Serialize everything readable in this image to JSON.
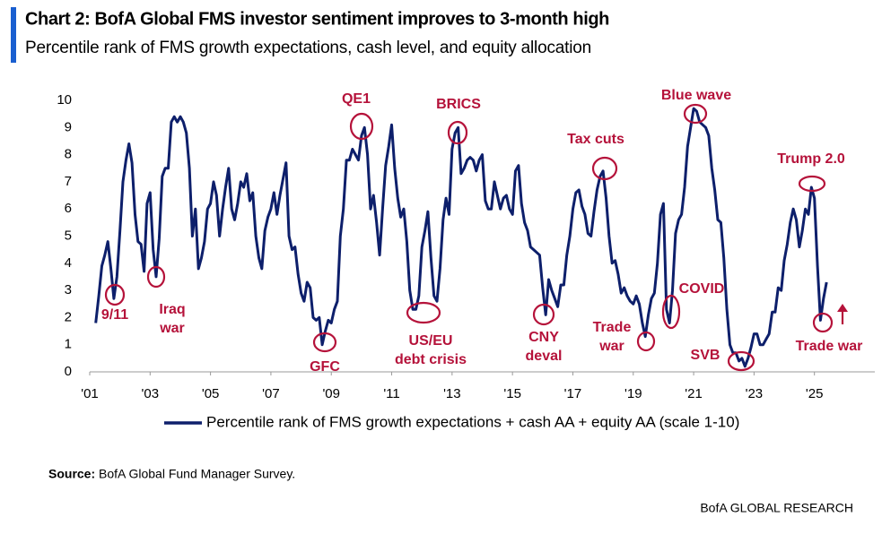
{
  "chart_data": {
    "type": "line",
    "title": "Chart 2: BofA Global FMS investor sentiment improves to 3-month high",
    "subtitle": "Percentile rank of FMS growth expectations, cash level, and equity allocation",
    "source_label": "Source:",
    "source": "BofA Global Fund Manager Survey.",
    "footer": "BofA GLOBAL RESEARCH",
    "xlim": [
      2001,
      2027
    ],
    "xticks": [
      {
        "value": 2001,
        "label": "'01"
      },
      {
        "value": 2003,
        "label": "'03"
      },
      {
        "value": 2005,
        "label": "'05"
      },
      {
        "value": 2007,
        "label": "'07"
      },
      {
        "value": 2009,
        "label": "'09"
      },
      {
        "value": 2011,
        "label": "'11"
      },
      {
        "value": 2013,
        "label": "'13"
      },
      {
        "value": 2015,
        "label": "'15"
      },
      {
        "value": 2017,
        "label": "'17"
      },
      {
        "value": 2019,
        "label": "'19"
      },
      {
        "value": 2021,
        "label": "'21"
      },
      {
        "value": 2023,
        "label": "'23"
      },
      {
        "value": 2025,
        "label": "'25"
      }
    ],
    "ylim": [
      0,
      10
    ],
    "yticks": [
      0,
      1,
      2,
      3,
      4,
      5,
      6,
      7,
      8,
      9,
      10
    ],
    "grid": false,
    "legend": "bottom",
    "annotations": [
      [
        "9/11"
      ],
      [
        "Iraq",
        "war"
      ],
      [
        "GFC"
      ],
      [
        "QE1"
      ],
      [
        "US/EU",
        "debt crisis"
      ],
      [
        "BRICS"
      ],
      [
        "CNY",
        "deval"
      ],
      [
        "Tax cuts"
      ],
      [
        "Trade",
        "war"
      ],
      [
        "COVID"
      ],
      [
        "Blue wave"
      ],
      [
        "SVB"
      ],
      [
        "Trump 2.0"
      ],
      [
        "Trade war"
      ]
    ],
    "annotation_color": "#b5123a",
    "x": [
      2001.2,
      2001.3,
      2001.4,
      2001.5,
      2001.6,
      2001.7,
      2001.8,
      2001.9,
      2002.0,
      2002.1,
      2002.2,
      2002.3,
      2002.4,
      2002.5,
      2002.6,
      2002.7,
      2002.8,
      2002.9,
      2003.0,
      2003.1,
      2003.2,
      2003.3,
      2003.4,
      2003.5,
      2003.6,
      2003.7,
      2003.8,
      2003.9,
      2004.0,
      2004.1,
      2004.2,
      2004.3,
      2004.4,
      2004.5,
      2004.6,
      2004.7,
      2004.8,
      2004.9,
      2005.0,
      2005.1,
      2005.2,
      2005.3,
      2005.4,
      2005.5,
      2005.6,
      2005.7,
      2005.8,
      2005.9,
      2006.0,
      2006.1,
      2006.2,
      2006.3,
      2006.4,
      2006.5,
      2006.6,
      2006.7,
      2006.8,
      2006.9,
      2007.0,
      2007.1,
      2007.2,
      2007.3,
      2007.4,
      2007.5,
      2007.6,
      2007.7,
      2007.8,
      2007.9,
      2008.0,
      2008.1,
      2008.2,
      2008.3,
      2008.4,
      2008.5,
      2008.6,
      2008.7,
      2008.8,
      2008.9,
      2009.0,
      2009.1,
      2009.2,
      2009.3,
      2009.4,
      2009.5,
      2009.6,
      2009.7,
      2009.8,
      2009.9,
      2010.0,
      2010.1,
      2010.2,
      2010.3,
      2010.4,
      2010.5,
      2010.6,
      2010.7,
      2010.8,
      2010.9,
      2011.0,
      2011.1,
      2011.2,
      2011.3,
      2011.4,
      2011.5,
      2011.6,
      2011.7,
      2011.8,
      2011.9,
      2012.0,
      2012.1,
      2012.2,
      2012.3,
      2012.4,
      2012.5,
      2012.6,
      2012.7,
      2012.8,
      2012.9,
      2013.0,
      2013.1,
      2013.2,
      2013.3,
      2013.4,
      2013.5,
      2013.6,
      2013.7,
      2013.8,
      2013.9,
      2014.0,
      2014.1,
      2014.2,
      2014.3,
      2014.4,
      2014.5,
      2014.6,
      2014.7,
      2014.8,
      2014.9,
      2015.0,
      2015.1,
      2015.2,
      2015.3,
      2015.4,
      2015.5,
      2015.6,
      2015.7,
      2015.8,
      2015.9,
      2016.0,
      2016.1,
      2016.2,
      2016.3,
      2016.4,
      2016.5,
      2016.6,
      2016.7,
      2016.8,
      2016.9,
      2017.0,
      2017.1,
      2017.2,
      2017.3,
      2017.4,
      2017.5,
      2017.6,
      2017.7,
      2017.8,
      2017.9,
      2018.0,
      2018.1,
      2018.2,
      2018.3,
      2018.4,
      2018.5,
      2018.6,
      2018.7,
      2018.8,
      2018.9,
      2019.0,
      2019.1,
      2019.2,
      2019.3,
      2019.4,
      2019.5,
      2019.6,
      2019.7,
      2019.8,
      2019.9,
      2020.0,
      2020.1,
      2020.2,
      2020.3,
      2020.4,
      2020.5,
      2020.6,
      2020.7,
      2020.8,
      2020.9,
      2021.0,
      2021.1,
      2021.2,
      2021.3,
      2021.4,
      2021.5,
      2021.6,
      2021.7,
      2021.8,
      2021.9,
      2022.0,
      2022.1,
      2022.2,
      2022.3,
      2022.4,
      2022.5,
      2022.6,
      2022.7,
      2022.8,
      2022.9,
      2023.0,
      2023.1,
      2023.2,
      2023.3,
      2023.4,
      2023.5,
      2023.6,
      2023.7,
      2023.8,
      2023.9,
      2024.0,
      2024.1,
      2024.2,
      2024.3,
      2024.4,
      2024.5,
      2024.6,
      2024.7,
      2024.8,
      2024.9,
      2025.0,
      2025.1,
      2025.2,
      2025.3,
      2025.4
    ],
    "series": [
      {
        "name": "Percentile rank of FMS growth expectations + cash AA + equity AA (scale 1-10)",
        "color": "#0d1f6b",
        "values": [
          1.8,
          2.8,
          3.9,
          4.3,
          4.8,
          3.8,
          2.7,
          3.5,
          5.2,
          7.0,
          7.8,
          8.4,
          7.7,
          5.8,
          4.8,
          4.7,
          3.7,
          6.2,
          6.6,
          4.5,
          3.5,
          4.9,
          7.2,
          7.5,
          7.5,
          9.2,
          9.4,
          9.2,
          9.4,
          9.2,
          8.8,
          7.5,
          5.0,
          6.0,
          3.8,
          4.2,
          4.8,
          6.0,
          6.2,
          7.0,
          6.5,
          5.0,
          6.0,
          6.8,
          7.5,
          6.0,
          5.6,
          6.2,
          7.0,
          6.8,
          7.3,
          6.3,
          6.6,
          5.0,
          4.2,
          3.8,
          5.2,
          5.7,
          6.0,
          6.6,
          5.8,
          6.5,
          7.1,
          7.7,
          5.0,
          4.5,
          4.6,
          3.6,
          2.9,
          2.6,
          3.3,
          3.1,
          2.0,
          1.9,
          2.0,
          1.0,
          1.5,
          1.9,
          1.8,
          2.3,
          2.6,
          5.0,
          6.0,
          7.8,
          7.8,
          8.2,
          8.0,
          7.8,
          8.7,
          9.0,
          8.0,
          6.0,
          6.5,
          5.5,
          4.3,
          6.0,
          7.6,
          8.3,
          9.1,
          7.5,
          6.4,
          5.7,
          6.0,
          4.8,
          3.0,
          2.3,
          2.3,
          2.8,
          4.6,
          5.2,
          5.9,
          4.2,
          2.8,
          2.6,
          3.8,
          5.6,
          6.4,
          5.8,
          8.2,
          8.8,
          9.0,
          7.3,
          7.5,
          7.8,
          7.9,
          7.8,
          7.4,
          7.8,
          8.0,
          6.3,
          6.0,
          6.0,
          7.0,
          6.5,
          6.0,
          6.4,
          6.5,
          6.0,
          5.8,
          7.4,
          7.6,
          6.2,
          5.5,
          5.2,
          4.6,
          4.5,
          4.4,
          4.3,
          3.1,
          2.1,
          3.4,
          3.0,
          2.7,
          2.4,
          3.2,
          3.2,
          4.3,
          5.0,
          6.0,
          6.6,
          6.7,
          6.1,
          5.8,
          5.1,
          5.0,
          5.9,
          6.7,
          7.2,
          7.4,
          6.4,
          5.0,
          4.0,
          4.1,
          3.6,
          2.9,
          3.1,
          2.8,
          2.6,
          2.5,
          2.8,
          2.5,
          1.8,
          1.3,
          2.1,
          2.7,
          2.9,
          4.0,
          5.8,
          6.2,
          2.3,
          1.8,
          3.0,
          5.1,
          5.6,
          5.8,
          6.8,
          8.3,
          9.0,
          9.7,
          9.6,
          9.2,
          9.1,
          9.0,
          8.7,
          7.5,
          6.7,
          5.6,
          5.5,
          4.2,
          2.3,
          1.0,
          0.7,
          0.7,
          0.4,
          0.5,
          0.2,
          0.5,
          0.9,
          1.4,
          1.4,
          1.0,
          1.0,
          1.2,
          1.4,
          2.2,
          2.2,
          3.1,
          3.0,
          4.1,
          4.7,
          5.5,
          6.0,
          5.6,
          4.6,
          5.2,
          6.0,
          5.8,
          6.8,
          6.4,
          3.9,
          1.9,
          2.7,
          3.3
        ]
      }
    ]
  }
}
